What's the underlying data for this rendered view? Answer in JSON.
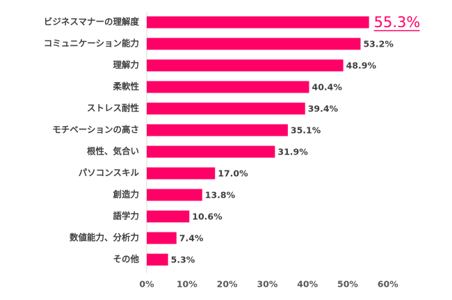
{
  "chart_data": {
    "type": "bar",
    "orientation": "horizontal",
    "title": "",
    "xlabel": "",
    "ylabel": "",
    "xlim": [
      0,
      60
    ],
    "xticks": [
      "0%",
      "10%",
      "20%",
      "30%",
      "40%",
      "50%",
      "60%"
    ],
    "grid": false,
    "legend": "none",
    "unit": "%",
    "categories": [
      "ビジネスマナーの理解度",
      "コミュニケーション能力",
      "理解力",
      "柔軟性",
      "ストレス耐性",
      "モチベーションの高さ",
      "根性、気合い",
      "パソコンスキル",
      "創造力",
      "語学力",
      "数値能力、分析力",
      "その他"
    ],
    "values": [
      55.3,
      53.2,
      48.9,
      40.4,
      39.4,
      35.1,
      31.9,
      17.0,
      13.8,
      10.6,
      7.4,
      5.3
    ],
    "value_labels": [
      "55.3%",
      "53.2%",
      "48.9%",
      "40.4%",
      "39.4%",
      "35.1%",
      "31.9%",
      "17.0%",
      "13.8%",
      "10.6%",
      "7.4%",
      "5.3%"
    ],
    "highlight_index": 0,
    "colors": {
      "bar": "#ff0066",
      "highlight_text": "#ff0066",
      "text": "#404040",
      "axis": "#d9d9d9"
    }
  }
}
